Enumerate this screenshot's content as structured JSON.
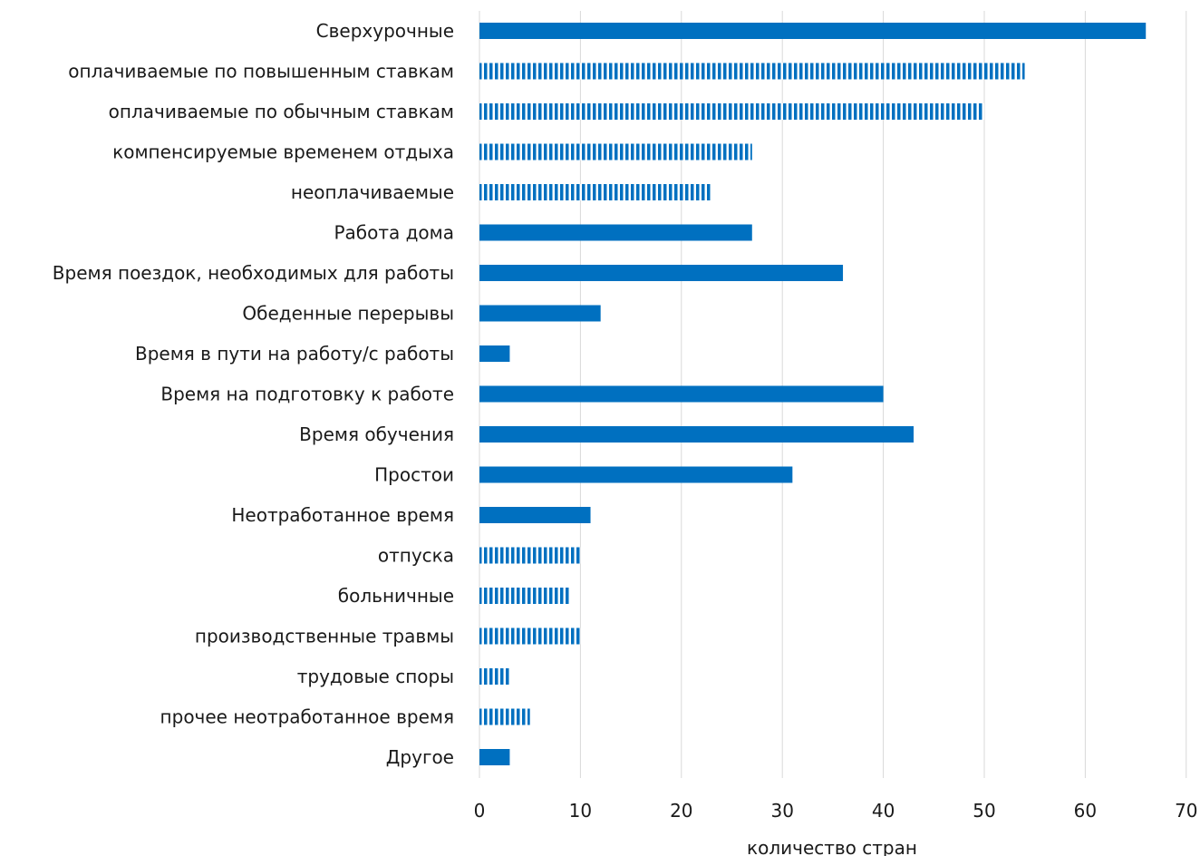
{
  "chart_data": {
    "type": "bar",
    "orientation": "horizontal",
    "title": "",
    "xlabel": "количество стран",
    "ylabel": "",
    "xlim": [
      0,
      70
    ],
    "x_ticks": [
      "0",
      "10",
      "20",
      "30",
      "40",
      "50",
      "60",
      "70"
    ],
    "grid": "vertical",
    "legend": "none",
    "colors": {
      "bar": "#0070C0",
      "stripe_gap": "#ffffff",
      "grid": "#d9d9d9"
    },
    "categories": [
      {
        "label": "Сверхурочные",
        "value": 66,
        "style": "solid"
      },
      {
        "label": "оплачиваемые по повышенным ставкам",
        "value": 54,
        "style": "striped"
      },
      {
        "label": "оплачиваемые по  обычным ставкам",
        "value": 50,
        "style": "striped"
      },
      {
        "label": "компенсируемые временем отдыха",
        "value": 27,
        "style": "striped"
      },
      {
        "label": "неоплачиваемые",
        "value": 23,
        "style": "striped"
      },
      {
        "label": "Работа дома",
        "value": 27,
        "style": "solid"
      },
      {
        "label": "Время поездок, необходимых для работы",
        "value": 36,
        "style": "solid"
      },
      {
        "label": "Обеденные перерывы",
        "value": 12,
        "style": "solid"
      },
      {
        "label": "Время в пути на работу/с работы",
        "value": 3,
        "style": "solid"
      },
      {
        "label": "Время на подготовку к работе",
        "value": 40,
        "style": "solid"
      },
      {
        "label": "Время обучения",
        "value": 43,
        "style": "solid"
      },
      {
        "label": "Простои",
        "value": 31,
        "style": "solid"
      },
      {
        "label": "Неотработанное время",
        "value": 11,
        "style": "solid"
      },
      {
        "label": "отпуска",
        "value": 10,
        "style": "striped"
      },
      {
        "label": "больничные",
        "value": 9,
        "style": "striped"
      },
      {
        "label": "производственные травмы",
        "value": 10,
        "style": "striped"
      },
      {
        "label": "трудовые споры",
        "value": 3,
        "style": "striped"
      },
      {
        "label": "прочее неотработанное время",
        "value": 5,
        "style": "striped"
      },
      {
        "label": "Другое",
        "value": 3,
        "style": "solid"
      }
    ]
  }
}
